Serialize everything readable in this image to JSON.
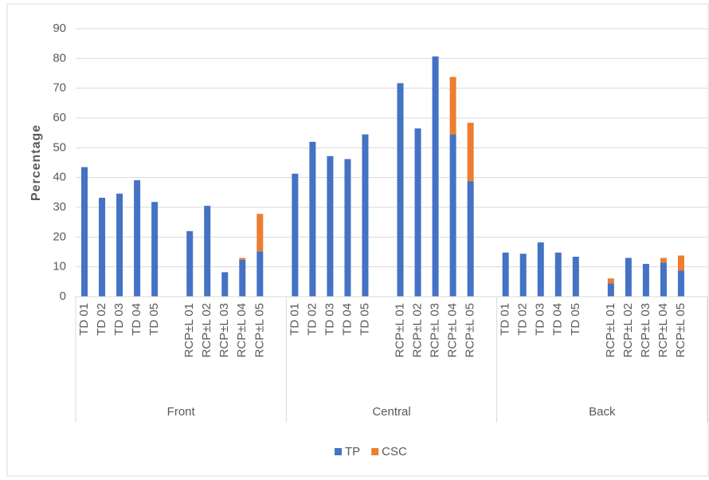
{
  "chart_data": {
    "type": "bar",
    "stacked": true,
    "y_label": "Percentage",
    "groups": [
      "Front",
      "Central",
      "Back"
    ],
    "categories": [
      "TD 01",
      "TD 02",
      "TD 03",
      "TD 04",
      "TD 05",
      null,
      "RCP±L 01",
      "RCP±L 02",
      "RCP±L 03",
      "RCP±L 04",
      "RCP±L 05",
      null,
      "TD 01",
      "TD 02",
      "TD 03",
      "TD 04",
      "TD 05",
      null,
      "RCP±L 01",
      "RCP±L 02",
      "RCP±L 03",
      "RCP±L 04",
      "RCP±L 05",
      null,
      "TD 01",
      "TD 02",
      "TD 03",
      "TD 04",
      "TD 05",
      null,
      "RCP±L 01",
      "RCP±L 02",
      "RCP±L 03",
      "RCP±L 04",
      "RCP±L 05",
      null
    ],
    "series": [
      {
        "name": "TP",
        "color": "#4472c4",
        "values": [
          43.5,
          33.2,
          34.6,
          39.1,
          31.8,
          null,
          22,
          30.5,
          8.2,
          12.4,
          15.2,
          null,
          41.3,
          52,
          47.2,
          46.2,
          54.5,
          null,
          71.7,
          56.5,
          80.7,
          54.5,
          38.8,
          null,
          14.8,
          14.4,
          18.2,
          14.8,
          13.4,
          null,
          4.5,
          13,
          11,
          11.4,
          8.7,
          null
        ]
      },
      {
        "name": "CSC",
        "color": "#ed7d31",
        "values": [
          0,
          0,
          0,
          0,
          0,
          null,
          0,
          0,
          0,
          0.6,
          12.6,
          null,
          0,
          0,
          0,
          0,
          0,
          null,
          0,
          0,
          0,
          19.3,
          19.6,
          null,
          0,
          0,
          0,
          0,
          0,
          null,
          1.6,
          0,
          0,
          1.6,
          5.1,
          null
        ]
      }
    ],
    "ylim": [
      0,
      90
    ],
    "yticks": [
      0,
      10,
      20,
      30,
      40,
      50,
      60,
      70,
      80,
      90
    ],
    "grid": true
  }
}
